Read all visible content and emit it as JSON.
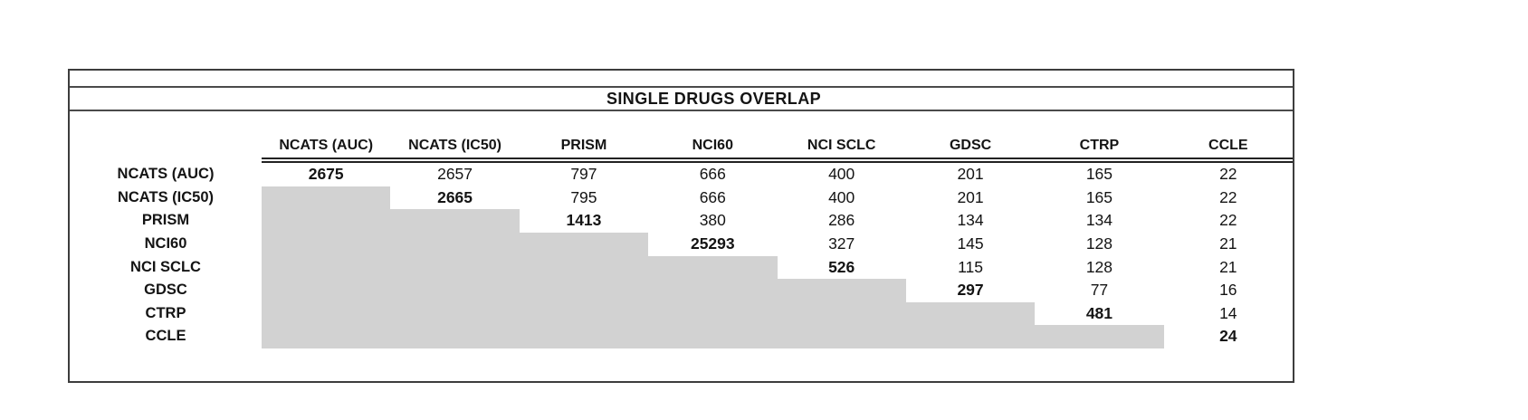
{
  "title": "SINGLE DRUGS OVERLAP",
  "colors": {
    "background": "#ffffff",
    "text": "#141414",
    "outer_border": "#3d3d3d",
    "rule": "#222222",
    "shaded_cell": "#d2d2d2"
  },
  "matrix": {
    "columns": [
      "NCATS (AUC)",
      "NCATS (IC50)",
      "PRISM",
      "NCI60",
      "NCI SCLC",
      "GDSC",
      "CTRP",
      "CCLE"
    ],
    "rows": [
      {
        "label": "NCATS (AUC)",
        "cells": [
          "2675",
          "2657",
          "797",
          "666",
          "400",
          "201",
          "165",
          "22"
        ]
      },
      {
        "label": "NCATS (IC50)",
        "cells": [
          null,
          "2665",
          "795",
          "666",
          "400",
          "201",
          "165",
          "22"
        ]
      },
      {
        "label": "PRISM",
        "cells": [
          null,
          null,
          "1413",
          "380",
          "286",
          "134",
          "134",
          "22"
        ]
      },
      {
        "label": "NCI60",
        "cells": [
          null,
          null,
          null,
          "25293",
          "327",
          "145",
          "128",
          "21"
        ]
      },
      {
        "label": "NCI SCLC",
        "cells": [
          null,
          null,
          null,
          null,
          "526",
          "115",
          "128",
          "21"
        ]
      },
      {
        "label": "GDSC",
        "cells": [
          null,
          null,
          null,
          null,
          null,
          "297",
          "77",
          "16"
        ]
      },
      {
        "label": "CTRP",
        "cells": [
          null,
          null,
          null,
          null,
          null,
          null,
          "481",
          "14"
        ]
      },
      {
        "label": "CCLE",
        "cells": [
          null,
          null,
          null,
          null,
          null,
          null,
          null,
          "24"
        ]
      }
    ]
  }
}
